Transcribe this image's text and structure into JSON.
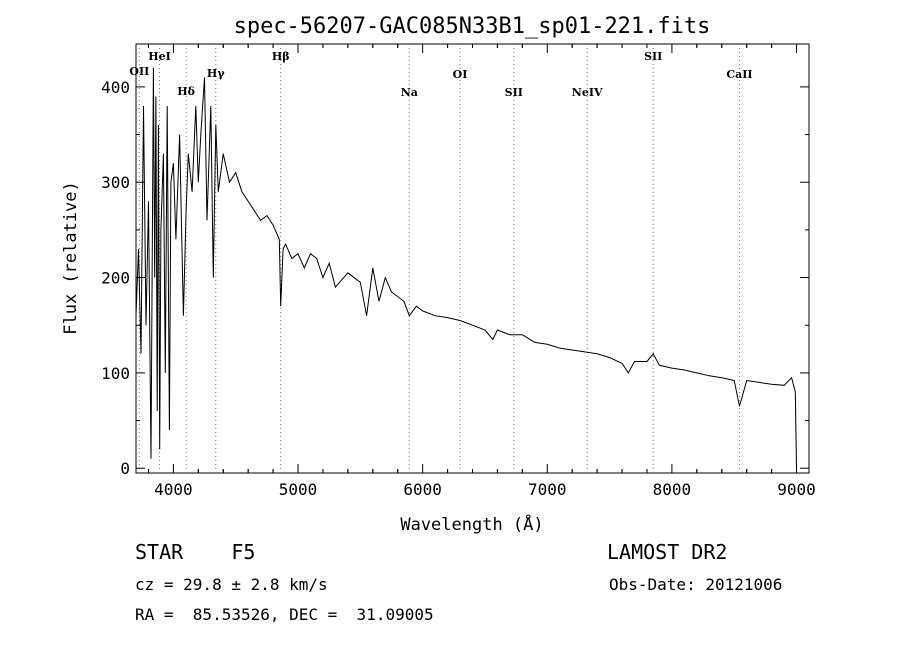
{
  "chart_data": {
    "type": "line",
    "title": "spec-56207-GAC085N33B1_sp01-221.fits",
    "xlabel": "Wavelength (Å)",
    "ylabel": "Flux (relative)",
    "xlim": [
      3700,
      9100
    ],
    "ylim": [
      -5,
      445
    ],
    "xticks": [
      4000,
      5000,
      6000,
      7000,
      8000,
      9000
    ],
    "yticks": [
      0,
      100,
      200,
      300,
      400
    ],
    "grid": false,
    "series": [
      {
        "x": [
          3700,
          3720,
          3740,
          3760,
          3780,
          3800,
          3820,
          3840,
          3850,
          3860,
          3870,
          3880,
          3890,
          3900,
          3920,
          3935,
          3950,
          3968,
          3980,
          4000,
          4020,
          4050,
          4080,
          4102,
          4120,
          4150,
          4180,
          4200,
          4220,
          4250,
          4270,
          4300,
          4320,
          4340,
          4360,
          4400,
          4450,
          4500,
          4550,
          4600,
          4650,
          4700,
          4750,
          4800,
          4850,
          4861,
          4880,
          4900,
          4950,
          5000,
          5050,
          5100,
          5150,
          5200,
          5250,
          5300,
          5400,
          5500,
          5550,
          5600,
          5650,
          5700,
          5750,
          5800,
          5850,
          5893,
          5950,
          6000,
          6100,
          6200,
          6300,
          6400,
          6500,
          6563,
          6600,
          6700,
          6800,
          6900,
          7000,
          7100,
          7200,
          7300,
          7400,
          7500,
          7600,
          7650,
          7700,
          7800,
          7850,
          7900,
          8000,
          8100,
          8200,
          8300,
          8400,
          8500,
          8542,
          8600,
          8700,
          8800,
          8900,
          8960,
          8990,
          9000
        ],
        "y": [
          160,
          230,
          120,
          380,
          150,
          280,
          10,
          420,
          200,
          390,
          60,
          360,
          20,
          250,
          330,
          100,
          380,
          40,
          300,
          320,
          240,
          350,
          160,
          270,
          330,
          290,
          380,
          300,
          350,
          410,
          260,
          380,
          200,
          360,
          290,
          330,
          300,
          310,
          290,
          280,
          270,
          260,
          265,
          255,
          240,
          170,
          230,
          235,
          220,
          225,
          210,
          225,
          220,
          200,
          215,
          190,
          205,
          195,
          160,
          210,
          175,
          200,
          185,
          180,
          175,
          160,
          170,
          165,
          160,
          158,
          155,
          150,
          145,
          135,
          145,
          140,
          140,
          132,
          130,
          126,
          124,
          122,
          120,
          116,
          110,
          100,
          112,
          112,
          120,
          108,
          105,
          103,
          100,
          97,
          95,
          92,
          65,
          92,
          90,
          88,
          87,
          95,
          80,
          0
        ]
      }
    ],
    "lines": [
      {
        "name": "OII",
        "x": 3727
      },
      {
        "name": "HeI",
        "x": 3889
      },
      {
        "name": "Hδ",
        "x": 4102
      },
      {
        "name": "Hγ",
        "x": 4340
      },
      {
        "name": "Hβ",
        "x": 4861
      },
      {
        "name": "Na",
        "x": 5893
      },
      {
        "name": "OI",
        "x": 6300
      },
      {
        "name": "SII",
        "x": 6731
      },
      {
        "name": "NeIV",
        "x": 7320
      },
      {
        "name": "SII",
        "x": 7850
      },
      {
        "name": "CaII",
        "x": 8542
      }
    ]
  },
  "footer": {
    "class_line": "STAR    F5",
    "survey": "LAMOST DR2",
    "cz": "cz = 29.8 ± 2.8 km/s",
    "obs_date": "Obs-Date: 20121006",
    "radec": "RA =  85.53526, DEC =  31.09005"
  }
}
